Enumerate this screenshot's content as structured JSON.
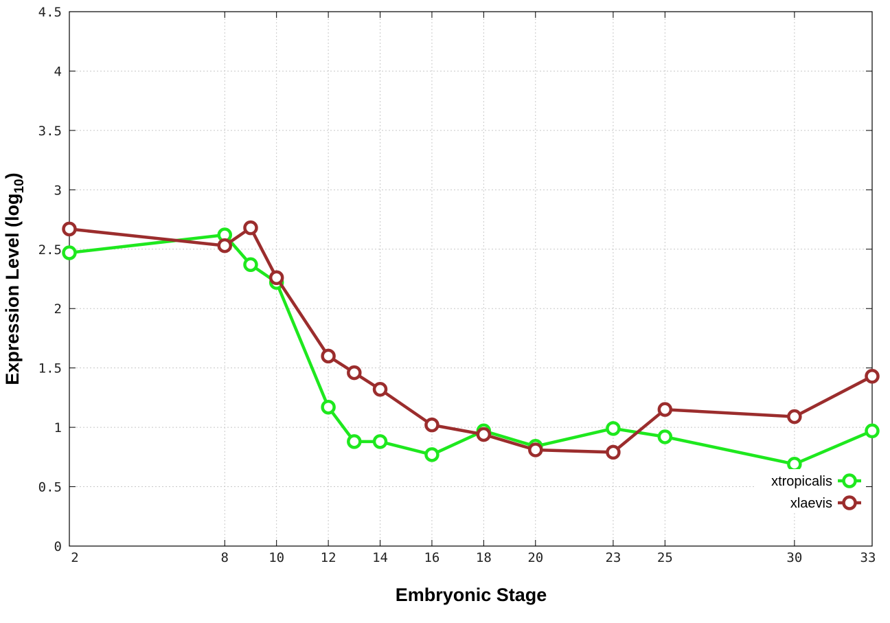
{
  "chart_data": {
    "type": "line",
    "title": "",
    "xlabel": "Embryonic Stage",
    "ylabel": {
      "text": "Expression Level (log",
      "sub": "10",
      "close": ")"
    },
    "x_ticks": [
      2,
      8,
      10,
      12,
      14,
      16,
      18,
      20,
      23,
      25,
      30,
      33
    ],
    "x_tick_labels": [
      "2",
      "8",
      "10",
      "12",
      "14",
      "16",
      "18",
      "20",
      "23",
      "25",
      "30",
      "33"
    ],
    "xlim": [
      2,
      33
    ],
    "ylim": [
      0,
      4.5
    ],
    "y_ticks": [
      0,
      0.5,
      1,
      1.5,
      2,
      2.5,
      3,
      3.5,
      4,
      4.5
    ],
    "y_tick_labels": [
      "0",
      "0.5",
      "1",
      "1.5",
      "2",
      "2.5",
      "3",
      "3.5",
      "4",
      "4.5"
    ],
    "grid": true,
    "legend_position": "bottom-right",
    "series": [
      {
        "name": "xtropicalis",
        "color": "#1ee81e",
        "points": [
          [
            2,
            2.47
          ],
          [
            8,
            2.62
          ],
          [
            9,
            2.37
          ],
          [
            10,
            2.22
          ],
          [
            12,
            1.17
          ],
          [
            13,
            0.88
          ],
          [
            14,
            0.88
          ],
          [
            16,
            0.77
          ],
          [
            18,
            0.97
          ],
          [
            20,
            0.84
          ],
          [
            23,
            0.99
          ],
          [
            25,
            0.92
          ],
          [
            30,
            0.69
          ],
          [
            33,
            0.97
          ]
        ]
      },
      {
        "name": "xlaevis",
        "color": "#9b2d2d",
        "points": [
          [
            2,
            2.67
          ],
          [
            8,
            2.53
          ],
          [
            9,
            2.68
          ],
          [
            10,
            2.26
          ],
          [
            12,
            1.6
          ],
          [
            13,
            1.46
          ],
          [
            14,
            1.32
          ],
          [
            16,
            1.02
          ],
          [
            18,
            0.94
          ],
          [
            20,
            0.81
          ],
          [
            23,
            0.79
          ],
          [
            25,
            1.15
          ],
          [
            30,
            1.09
          ],
          [
            33,
            1.43
          ]
        ]
      }
    ]
  }
}
